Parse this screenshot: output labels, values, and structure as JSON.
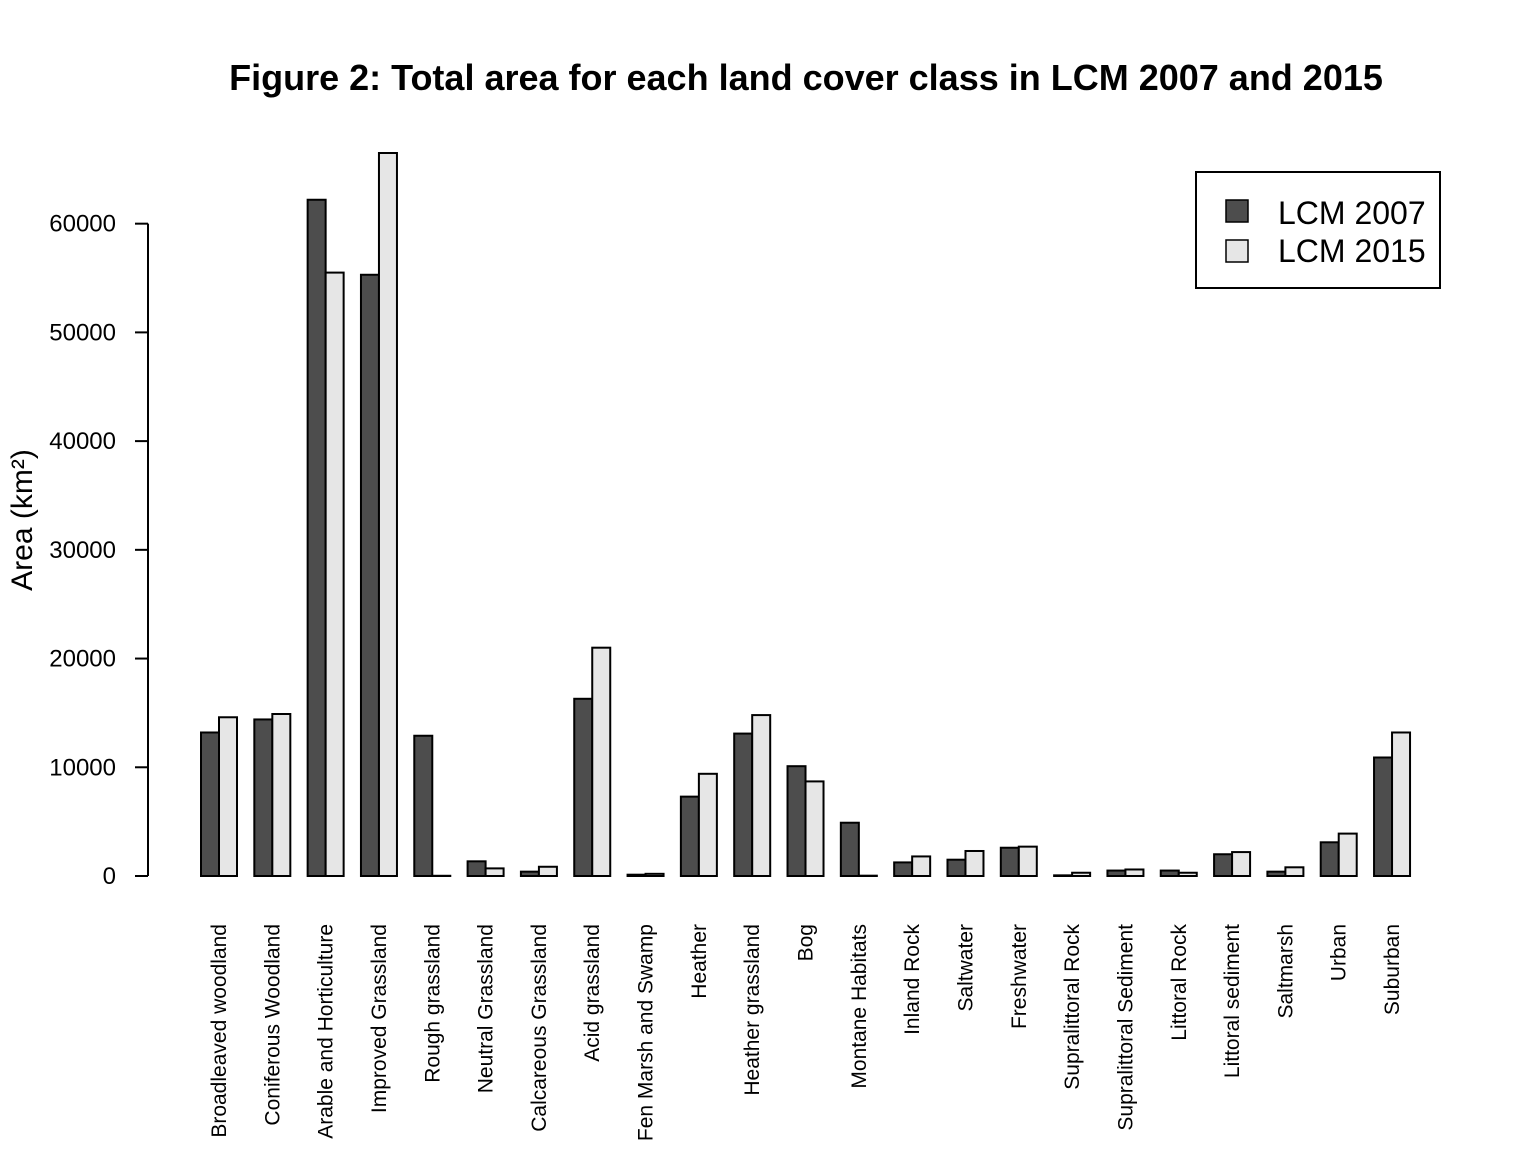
{
  "chart_data": {
    "type": "bar",
    "title": "Figure 2: Total area for each land cover class in LCM 2007 and 2015",
    "xlabel": "",
    "ylabel": "Area (km²)",
    "ylim": [
      0,
      66500
    ],
    "yticks": [
      0,
      10000,
      20000,
      30000,
      40000,
      50000,
      60000
    ],
    "ytick_labels": [
      "0",
      "10000",
      "20000",
      "30000",
      "40000",
      "50000",
      "60000"
    ],
    "grid": false,
    "legend_position": "top-right",
    "categories": [
      "Broadleaved woodland",
      "Coniferous Woodland",
      "Arable and Horticulture",
      "Improved Grassland",
      "Rough grassland",
      "Neutral Grassland",
      "Calcareous Grassland",
      "Acid grassland",
      "Fen Marsh and Swamp",
      "Heather",
      "Heather grassland",
      "Bog",
      "Montane Habitats",
      "Inland Rock",
      "Saltwater",
      "Freshwater",
      "Supralittoral Rock",
      "Supralittoral Sediment",
      "Littoral Rock",
      "Littoral sediment",
      "Saltmarsh",
      "Urban",
      "Suburban"
    ],
    "series": [
      {
        "name": "LCM 2007",
        "color": "#4d4d4d",
        "values": [
          13200,
          14400,
          62200,
          55300,
          12900,
          1350,
          400,
          16300,
          120,
          7300,
          13100,
          10100,
          4900,
          1250,
          1500,
          2600,
          60,
          500,
          500,
          2000,
          400,
          3100,
          10900
        ]
      },
      {
        "name": "LCM 2015",
        "color": "#e6e6e6",
        "values": [
          14600,
          14900,
          55500,
          66500,
          20,
          700,
          850,
          21000,
          200,
          9400,
          14800,
          8700,
          30,
          1800,
          2300,
          2700,
          300,
          600,
          300,
          2200,
          800,
          3900,
          13200
        ]
      }
    ]
  }
}
